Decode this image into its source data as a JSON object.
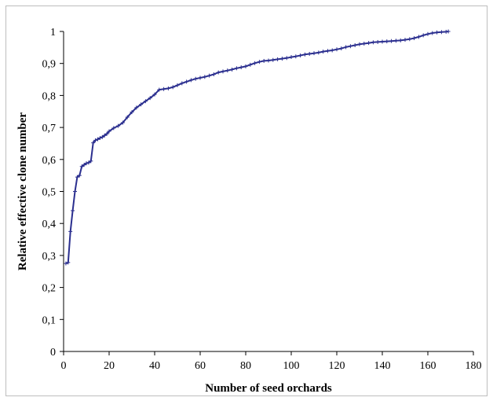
{
  "chart_data": {
    "type": "line",
    "title": "",
    "xlabel": "Number of seed orchards",
    "ylabel": "Relative effective clone number",
    "xlim": [
      0,
      180
    ],
    "ylim": [
      0,
      1
    ],
    "x_ticks": [
      "0",
      "20",
      "40",
      "60",
      "80",
      "100",
      "120",
      "140",
      "160",
      "180"
    ],
    "y_ticks": [
      "0",
      "0,1",
      "0,2",
      "0,3",
      "0,4",
      "0,5",
      "0,6",
      "0,7",
      "0,8",
      "0,9",
      "1"
    ],
    "grid": false,
    "legend": "none",
    "series": [
      {
        "color": "#2b2f8f",
        "marker": "plus",
        "x": [
          1,
          2,
          3,
          4,
          5,
          6,
          7,
          8,
          9,
          10,
          11,
          12,
          13,
          14,
          15,
          16,
          17,
          18,
          19,
          20,
          22,
          24,
          26,
          28,
          30,
          32,
          34,
          36,
          38,
          40,
          42,
          44,
          46,
          48,
          50,
          52,
          54,
          56,
          58,
          60,
          62,
          64,
          66,
          68,
          70,
          72,
          74,
          76,
          78,
          80,
          82,
          84,
          86,
          88,
          90,
          92,
          94,
          96,
          98,
          100,
          102,
          104,
          106,
          108,
          110,
          112,
          114,
          116,
          118,
          120,
          122,
          124,
          126,
          128,
          130,
          132,
          134,
          136,
          138,
          140,
          142,
          144,
          146,
          148,
          150,
          152,
          154,
          156,
          158,
          160,
          162,
          164,
          166,
          168,
          169
        ],
        "y": [
          0.275,
          0.278,
          0.375,
          0.44,
          0.5,
          0.545,
          0.55,
          0.578,
          0.583,
          0.588,
          0.59,
          0.595,
          0.652,
          0.66,
          0.663,
          0.667,
          0.67,
          0.675,
          0.68,
          0.688,
          0.698,
          0.705,
          0.715,
          0.732,
          0.748,
          0.762,
          0.772,
          0.782,
          0.792,
          0.803,
          0.818,
          0.82,
          0.822,
          0.826,
          0.832,
          0.838,
          0.843,
          0.848,
          0.852,
          0.855,
          0.858,
          0.862,
          0.866,
          0.872,
          0.875,
          0.878,
          0.881,
          0.885,
          0.888,
          0.891,
          0.896,
          0.901,
          0.905,
          0.908,
          0.909,
          0.911,
          0.913,
          0.915,
          0.917,
          0.92,
          0.922,
          0.925,
          0.928,
          0.93,
          0.932,
          0.934,
          0.937,
          0.939,
          0.941,
          0.944,
          0.947,
          0.951,
          0.954,
          0.957,
          0.96,
          0.962,
          0.964,
          0.966,
          0.967,
          0.968,
          0.969,
          0.97,
          0.971,
          0.972,
          0.974,
          0.976,
          0.979,
          0.983,
          0.988,
          0.992,
          0.995,
          0.997,
          0.998,
          0.999,
          1.0
        ]
      }
    ]
  }
}
